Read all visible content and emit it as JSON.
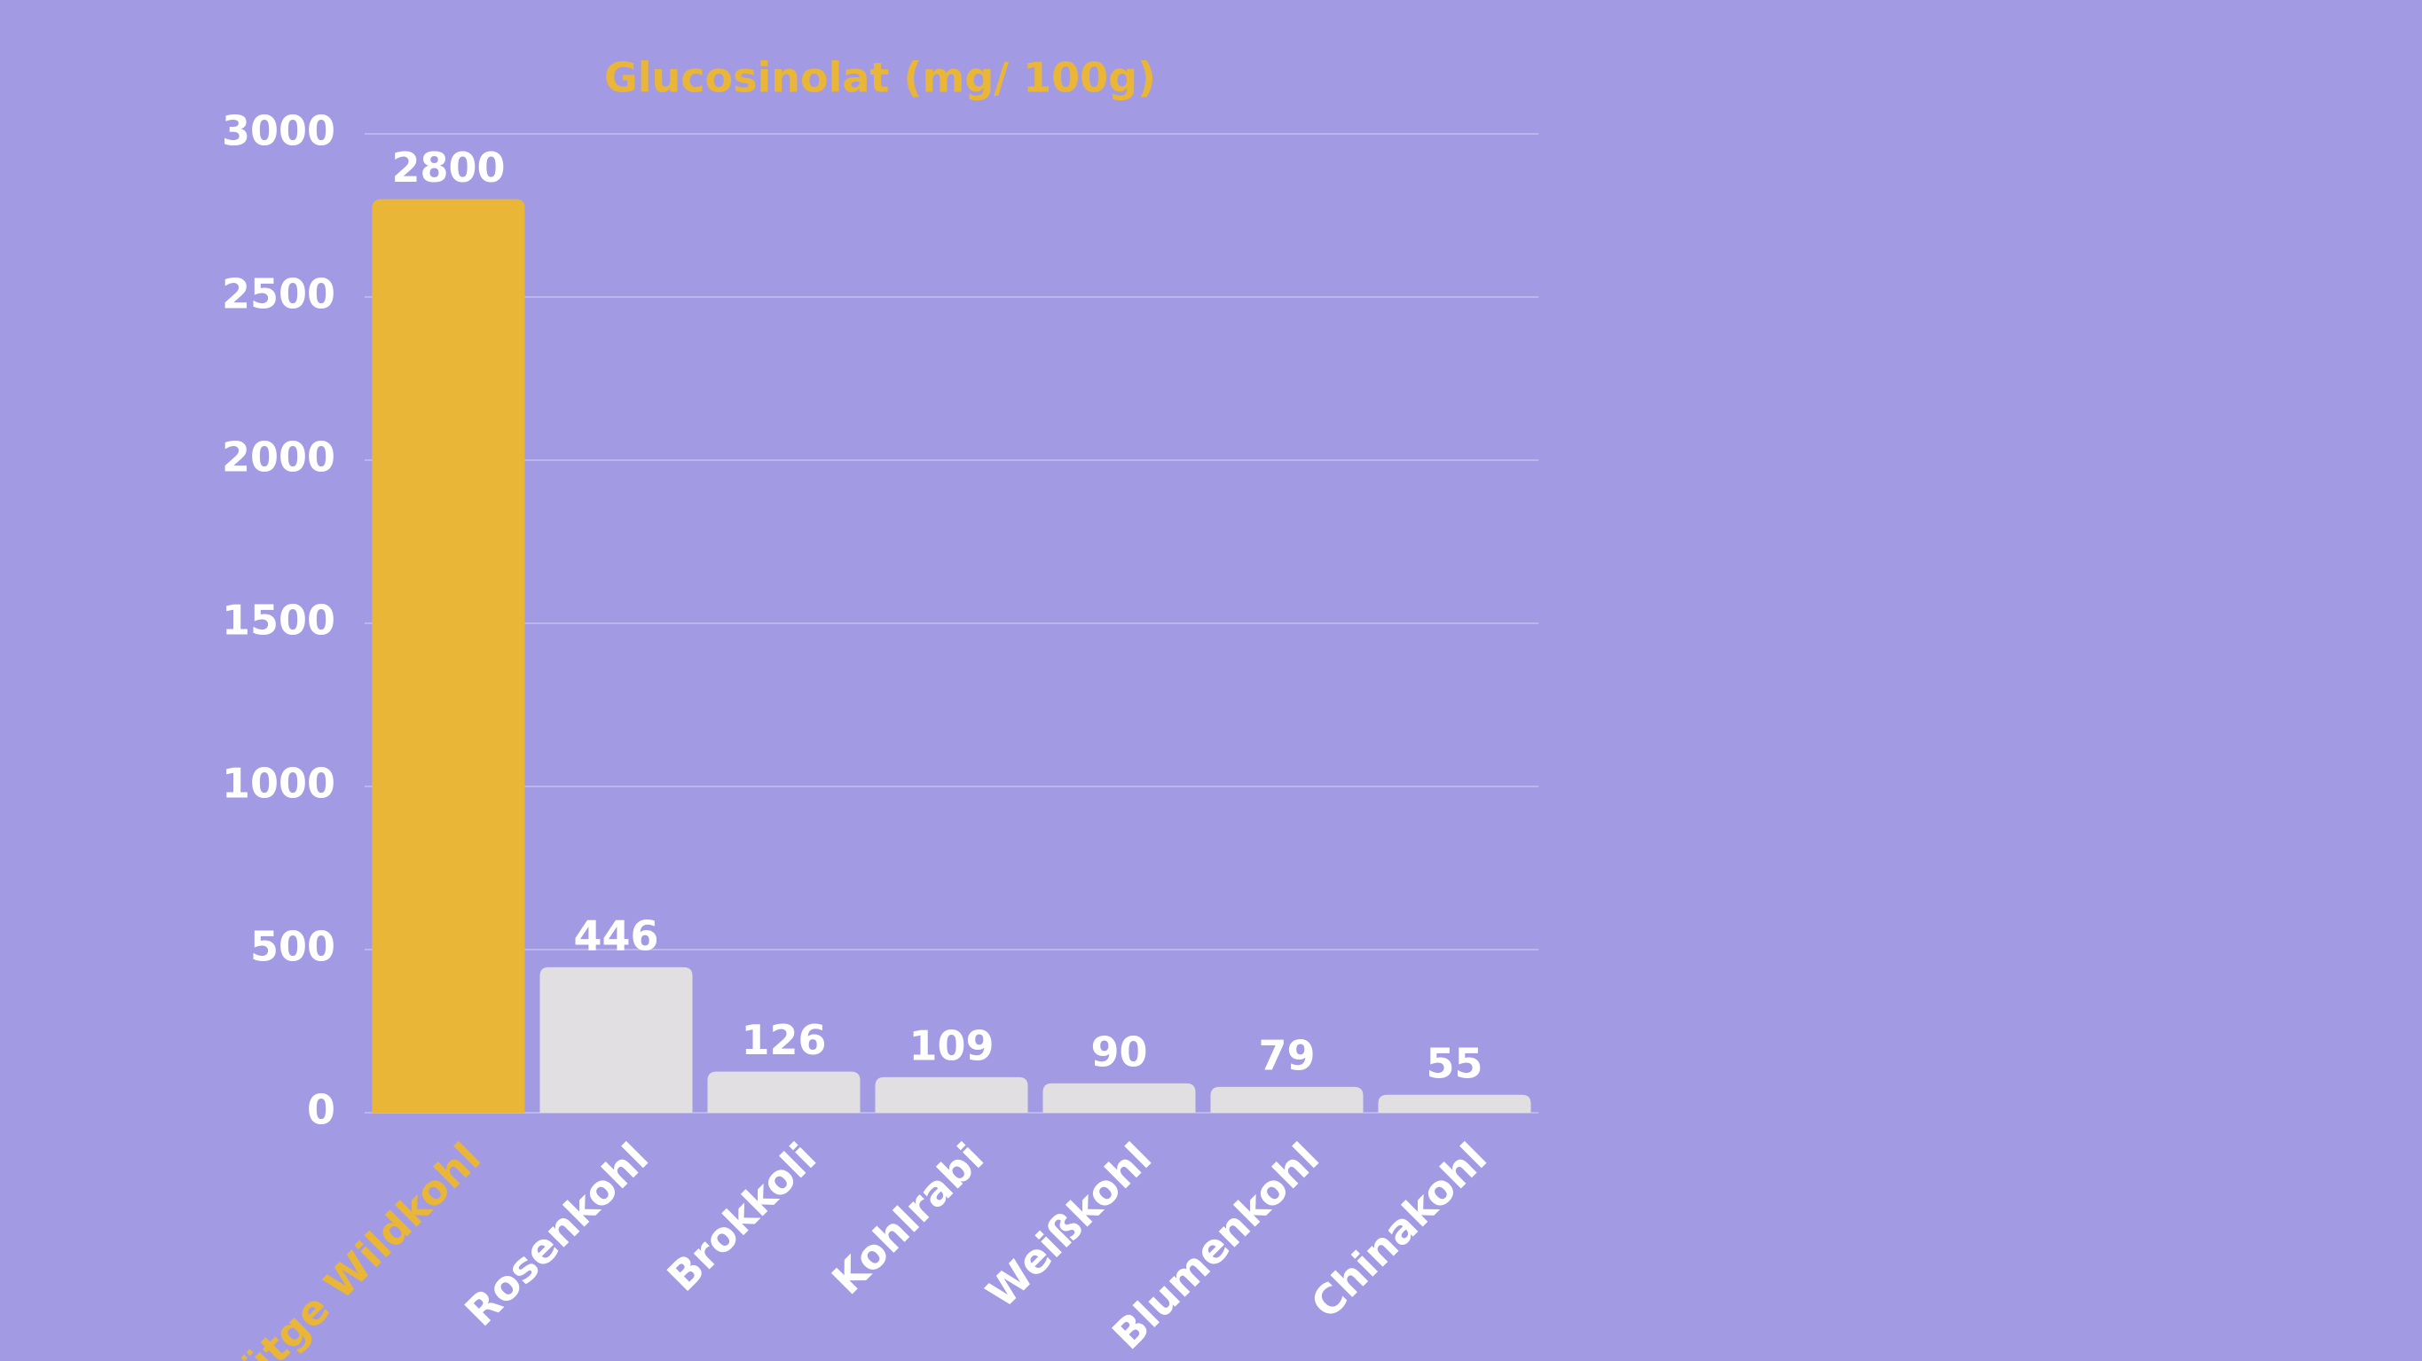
{
  "chart_data": {
    "type": "bar",
    "title": "Glucosinolat (mg/ 100g)",
    "categories": [
      "Lütge Wildkohl",
      "Rosenkohl",
      "Brokkoli",
      "Kohlrabi",
      "Weißkohl",
      "Blumenkohl",
      "Chinakohl"
    ],
    "values": [
      2800,
      446,
      126,
      109,
      90,
      79,
      55
    ],
    "colors": [
      "#e9b638",
      "#e1dfe2",
      "#e1dfe2",
      "#e1dfe2",
      "#e1dfe2",
      "#e1dfe2",
      "#e1dfe2"
    ],
    "label_colors": [
      "#e9b638",
      "#ffffff",
      "#ffffff",
      "#ffffff",
      "#ffffff",
      "#ffffff",
      "#ffffff"
    ],
    "ylim": [
      0,
      3000
    ],
    "yticks": [
      0,
      500,
      1000,
      1500,
      2000,
      2500,
      3000
    ],
    "grid": true
  }
}
